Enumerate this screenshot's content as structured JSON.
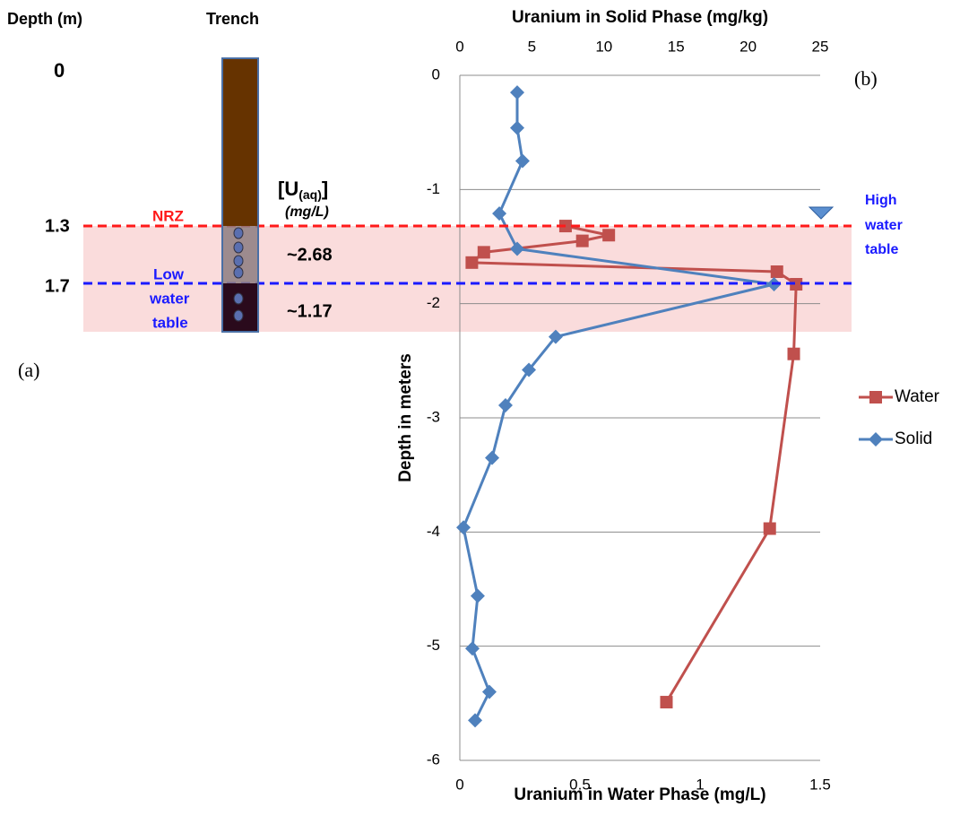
{
  "diagram": {
    "depth_header": "Depth (m)",
    "trench_header": "Trench",
    "depth_labels": [
      0,
      1.3,
      1.7
    ],
    "nrz": "NRZ",
    "low_water_table": [
      "Low",
      "water",
      "table"
    ],
    "conc_title": "[U",
    "conc_sub": "(aq)",
    "conc_title_end": "]",
    "conc_units": "(mg/L)",
    "conc_values": [
      "~2.68",
      "~1.17"
    ],
    "panel_label": "(a)"
  },
  "chart_data": {
    "type": "line",
    "panel_label": "(b)",
    "x_label": "Uranium in Water Phase (mg/L)",
    "x2_label": "Uranium in Solid Phase (mg/kg)",
    "y_label": "Depth in meters",
    "annotation": [
      "High",
      "water",
      "table"
    ],
    "xlim": [
      0,
      1.5
    ],
    "xticks": [
      0,
      0.5,
      1,
      1.5
    ],
    "x2lim": [
      0,
      25
    ],
    "x2ticks": [
      0,
      5,
      10,
      15,
      20,
      25
    ],
    "ylim": [
      -6,
      0
    ],
    "yticks": [
      0,
      -1,
      -2,
      -3,
      -4,
      -5,
      -6
    ],
    "grid": true,
    "legend": "right",
    "series": [
      {
        "name": "Water",
        "color": "#c0504d",
        "marker": "square",
        "x": [
          0.44,
          0.62,
          0.51,
          0.1,
          0.05,
          1.32,
          1.4,
          1.39,
          1.29,
          0.86
        ],
        "y": [
          -1.32,
          -1.4,
          -1.45,
          -1.55,
          -1.64,
          -1.72,
          -1.83,
          -2.44,
          -3.97,
          -5.49
        ]
      },
      {
        "name": "Solid",
        "color": "#4f81bd",
        "marker": "diamond",
        "axis": "x2",
        "x": [
          3.98,
          3.98,
          4.35,
          2.74,
          3.98,
          21.8,
          6.65,
          4.79,
          3.17,
          2.24,
          0.25,
          1.24,
          0.87,
          2.05,
          1.06
        ],
        "y": [
          -0.15,
          -0.46,
          -0.75,
          -1.21,
          -1.52,
          -1.83,
          -2.29,
          -2.58,
          -2.89,
          -3.35,
          -3.96,
          -4.56,
          -5.02,
          -5.4,
          -5.65
        ]
      }
    ]
  }
}
